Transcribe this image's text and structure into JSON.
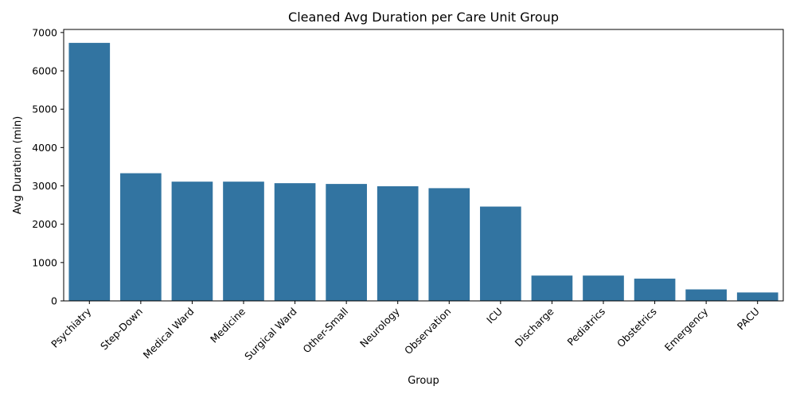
{
  "chart_data": {
    "type": "bar",
    "title": "Cleaned Avg Duration per Care Unit Group",
    "xlabel": "Group",
    "ylabel": "Avg Duration (min)",
    "categories": [
      "Psychiatry",
      "Step-Down",
      "Medical Ward",
      "Medicine",
      "Surgical Ward",
      "Other-Small",
      "Neurology",
      "Observation",
      "ICU",
      "Discharge",
      "Pediatrics",
      "Obstetrics",
      "Emergency",
      "PACU"
    ],
    "values": [
      6730,
      3330,
      3110,
      3110,
      3070,
      3050,
      2990,
      2940,
      2460,
      660,
      660,
      580,
      300,
      220
    ],
    "ylim": [
      0,
      7080
    ],
    "yticks": [
      0,
      1000,
      2000,
      3000,
      4000,
      5000,
      6000,
      7000
    ],
    "bar_color": "#3274a1",
    "grid": false,
    "legend": false
  }
}
